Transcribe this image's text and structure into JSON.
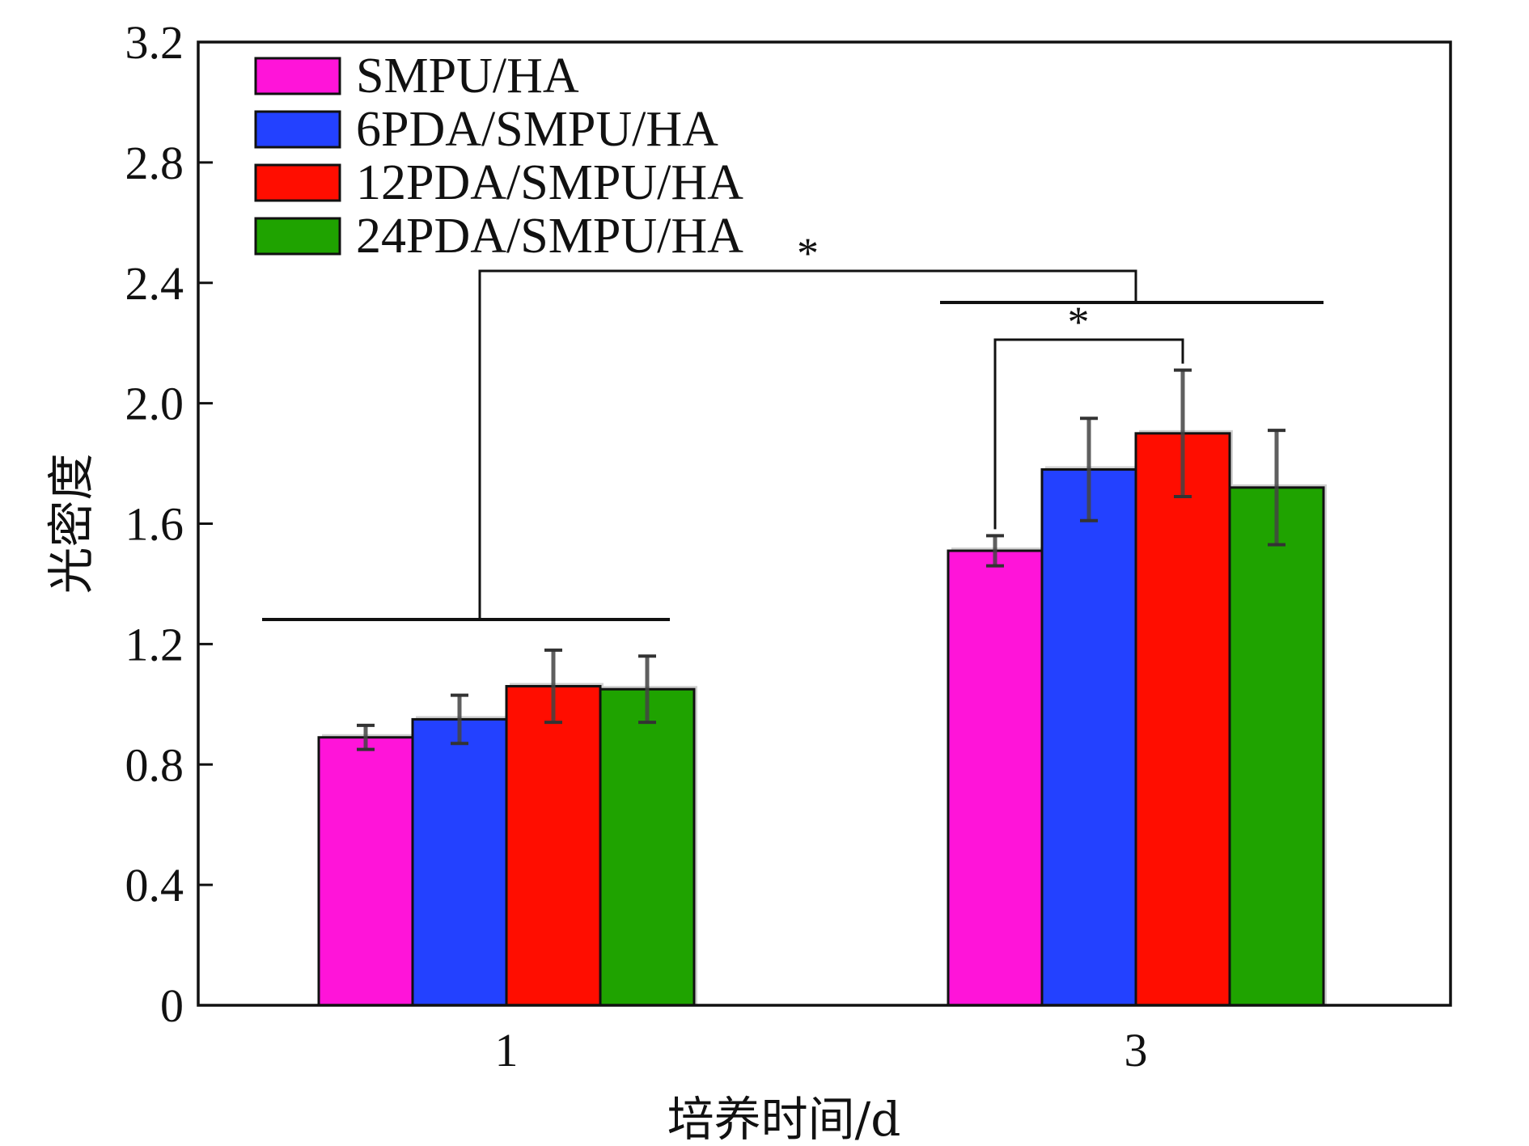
{
  "chart_data": {
    "type": "bar",
    "title": "",
    "xlabel": "培养时间/d",
    "ylabel": "光密度",
    "categories": [
      "1",
      "3"
    ],
    "ylim": [
      0,
      3.2
    ],
    "yticks": [
      "0",
      "0.4",
      "0.8",
      "1.2",
      "1.6",
      "2.0",
      "2.4",
      "2.8",
      "3.2"
    ],
    "grid": false,
    "legend_position": "top-left",
    "series": [
      {
        "name": "SMPU/HA",
        "color": "#ff14d9",
        "values": [
          0.89,
          1.51
        ],
        "errors": [
          0.04,
          0.05
        ]
      },
      {
        "name": "6PDA/SMPU/HA",
        "color": "#2341ff",
        "values": [
          0.95,
          1.78
        ],
        "errors": [
          0.08,
          0.17
        ]
      },
      {
        "name": "12PDA/SMPU/HA",
        "color": "#ff0d00",
        "values": [
          1.06,
          1.9
        ],
        "errors": [
          0.12,
          0.21
        ]
      },
      {
        "name": "24PDA/SMPU/HA",
        "color": "#1fa300",
        "values": [
          1.05,
          1.72
        ],
        "errors": [
          0.11,
          0.19
        ]
      }
    ],
    "significance": [
      {
        "label": "*",
        "between": "day 1 group vs day 3 group"
      },
      {
        "label": "*",
        "between": "SMPU/HA vs 12PDA/SMPU/HA (day 3)"
      }
    ]
  }
}
